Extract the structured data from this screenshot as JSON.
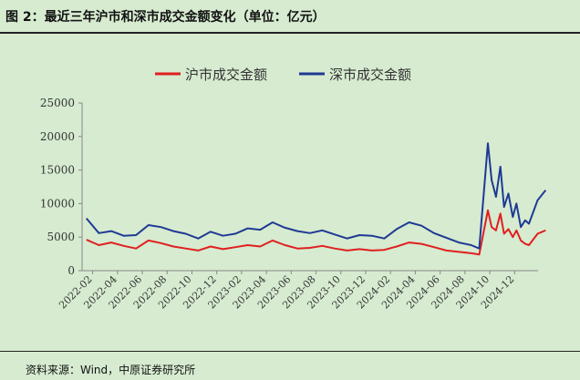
{
  "figure": {
    "title": "图 2：最近三年沪市和深市成交金额变化（单位：亿元）",
    "source": "资料来源：Wind，中原证券研究所"
  },
  "chart_data": {
    "type": "line",
    "title": "",
    "xlabel": "",
    "ylabel": "",
    "ylim": [
      0,
      25000
    ],
    "yticks": [
      0,
      5000,
      10000,
      15000,
      20000,
      25000
    ],
    "xticks": [
      "2022-02",
      "2022-04",
      "2022-06",
      "2022-08",
      "2022-10",
      "2022-12",
      "2023-02",
      "2023-04",
      "2023-06",
      "2023-08",
      "2023-10",
      "2023-12",
      "2024-02",
      "2024-04",
      "2024-06",
      "2024-08",
      "2024-10",
      "2024-12"
    ],
    "grid": false,
    "legend": "top",
    "x": [
      "2022-01",
      "2022-02",
      "2022-03",
      "2022-04",
      "2022-05",
      "2022-06",
      "2022-07",
      "2022-08",
      "2022-09",
      "2022-10",
      "2022-11",
      "2022-12",
      "2023-01",
      "2023-02",
      "2023-03",
      "2023-04",
      "2023-05",
      "2023-06",
      "2023-07",
      "2023-08",
      "2023-09",
      "2023-10",
      "2023-11",
      "2023-12",
      "2024-01",
      "2024-02",
      "2024-03",
      "2024-04",
      "2024-05",
      "2024-06",
      "2024-07",
      "2024-08",
      "2024-09-early",
      "2024-09-late",
      "2024-10-early",
      "2024-10-mid",
      "2024-10-late",
      "2024-11-early",
      "2024-11-mid",
      "2024-11-late",
      "2024-12-early",
      "2024-12-mid",
      "2024-12-late",
      "2025-01-early",
      "2025-01-late",
      "2025-02"
    ],
    "series": [
      {
        "name": "沪市成交金额",
        "color": "#e02020",
        "values": [
          4600,
          3800,
          4200,
          3700,
          3300,
          4500,
          4100,
          3600,
          3300,
          3000,
          3600,
          3200,
          3500,
          3800,
          3600,
          4500,
          3800,
          3300,
          3400,
          3700,
          3300,
          3000,
          3200,
          3000,
          3100,
          3600,
          4200,
          4000,
          3500,
          3000,
          2800,
          2600,
          2400,
          9000,
          6500,
          6000,
          8500,
          5500,
          6200,
          5000,
          6000,
          4500,
          4000,
          3800,
          5500,
          6000
        ]
      },
      {
        "name": "深市成交金额",
        "color": "#1f3a93",
        "values": [
          7800,
          5600,
          5900,
          5200,
          5300,
          6800,
          6500,
          5900,
          5500,
          4800,
          5800,
          5200,
          5500,
          6300,
          6100,
          7200,
          6400,
          5900,
          5600,
          6000,
          5400,
          4800,
          5300,
          5200,
          4800,
          6200,
          7200,
          6700,
          5600,
          4900,
          4200,
          3800,
          3300,
          19000,
          13500,
          11000,
          15500,
          9500,
          11500,
          8000,
          10000,
          6500,
          7500,
          7000,
          10500,
          12000
        ]
      }
    ]
  }
}
